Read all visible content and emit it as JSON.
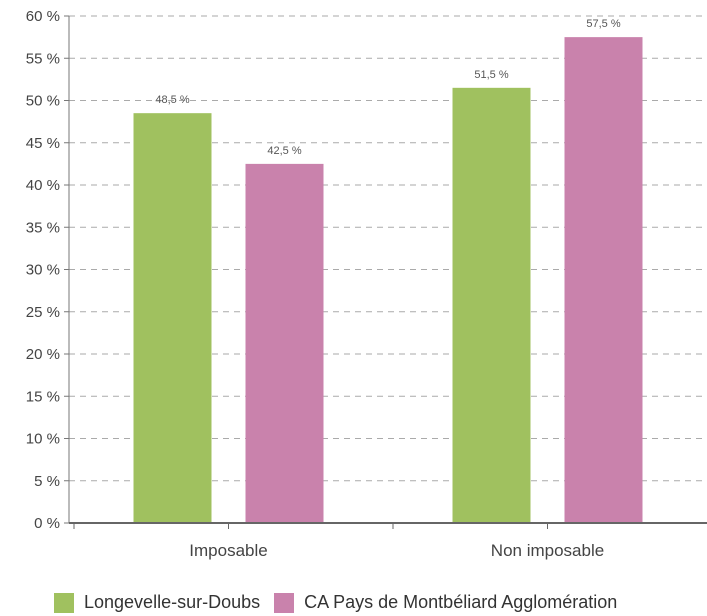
{
  "chart_data": {
    "type": "bar",
    "categories": [
      "Imposable",
      "Non imposable"
    ],
    "series": [
      {
        "name": "Longevelle-sur-Doubs",
        "values": [
          48.5,
          51.5
        ],
        "labels": [
          "48,5 %",
          "51,5 %"
        ],
        "color": "#a0c15f"
      },
      {
        "name": "CA Pays de Montbéliard Agglomération",
        "values": [
          42.5,
          57.5
        ],
        "labels": [
          "42,5 %",
          "57,5 %"
        ],
        "color": "#c982ac"
      }
    ],
    "ylim": [
      0,
      60
    ],
    "yticks": [
      "0 %",
      "5 %",
      "10 %",
      "15 %",
      "20 %",
      "25 %",
      "30 %",
      "35 %",
      "40 %",
      "45 %",
      "50 %",
      "55 %",
      "60 %"
    ],
    "grid": true,
    "legend_position": "bottom"
  }
}
